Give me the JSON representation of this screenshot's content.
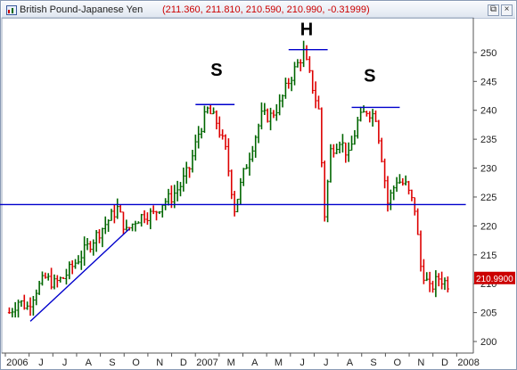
{
  "window": {
    "title": "British Pound-Japanese Yen",
    "values": "(211.360, 211.810, 210.590, 210.990, -0.31999)",
    "restore_label": "⧉",
    "close_label": "×"
  },
  "colors": {
    "up": "#006600",
    "down": "#dd0000",
    "line": "#0000cc",
    "price_box": "#cc0000"
  },
  "chart_data": {
    "type": "ohlc",
    "title": "British Pound-Japanese Yen",
    "ohlc_last": {
      "open": 211.36,
      "high": 211.81,
      "low": 210.59,
      "close": 210.99,
      "change": -0.31999
    },
    "last_price_label": "210.9900",
    "ylim": [
      198,
      256
    ],
    "y_ticks": [
      200,
      205,
      210,
      215,
      220,
      225,
      230,
      235,
      240,
      245,
      250
    ],
    "x_labels": [
      "2006",
      "J",
      "J",
      "A",
      "S",
      "O",
      "N",
      "D",
      "2007",
      "M",
      "A",
      "M",
      "J",
      "J",
      "A",
      "S",
      "O",
      "N",
      "D",
      "2008"
    ],
    "grid": false,
    "series": [
      {
        "x": 0,
        "y": 205
      },
      {
        "x": 3,
        "y": 207
      },
      {
        "x": 6,
        "y": 206
      },
      {
        "x": 9,
        "y": 209
      },
      {
        "x": 12,
        "y": 211
      },
      {
        "x": 15,
        "y": 210
      },
      {
        "x": 18,
        "y": 211
      },
      {
        "x": 21,
        "y": 213
      },
      {
        "x": 24,
        "y": 215
      },
      {
        "x": 27,
        "y": 217
      },
      {
        "x": 30,
        "y": 219
      },
      {
        "x": 33,
        "y": 221
      },
      {
        "x": 36,
        "y": 223
      },
      {
        "x": 39,
        "y": 219
      },
      {
        "x": 42,
        "y": 221
      },
      {
        "x": 45,
        "y": 222
      },
      {
        "x": 48,
        "y": 222
      },
      {
        "x": 51,
        "y": 224
      },
      {
        "x": 54,
        "y": 225
      },
      {
        "x": 57,
        "y": 227
      },
      {
        "x": 60,
        "y": 230
      },
      {
        "x": 63,
        "y": 236
      },
      {
        "x": 66,
        "y": 240
      },
      {
        "x": 69,
        "y": 238
      },
      {
        "x": 72,
        "y": 233
      },
      {
        "x": 75,
        "y": 223
      },
      {
        "x": 78,
        "y": 229
      },
      {
        "x": 81,
        "y": 234
      },
      {
        "x": 84,
        "y": 239
      },
      {
        "x": 87,
        "y": 239
      },
      {
        "x": 90,
        "y": 241
      },
      {
        "x": 93,
        "y": 245
      },
      {
        "x": 96,
        "y": 248
      },
      {
        "x": 98,
        "y": 250
      },
      {
        "x": 100,
        "y": 246
      },
      {
        "x": 103,
        "y": 240
      },
      {
        "x": 105,
        "y": 222
      },
      {
        "x": 107,
        "y": 233
      },
      {
        "x": 110,
        "y": 235
      },
      {
        "x": 113,
        "y": 232
      },
      {
        "x": 116,
        "y": 238
      },
      {
        "x": 119,
        "y": 240
      },
      {
        "x": 122,
        "y": 239
      },
      {
        "x": 124,
        "y": 232
      },
      {
        "x": 126,
        "y": 224
      },
      {
        "x": 129,
        "y": 228
      },
      {
        "x": 132,
        "y": 227
      },
      {
        "x": 135,
        "y": 223
      },
      {
        "x": 137,
        "y": 213
      },
      {
        "x": 140,
        "y": 209
      },
      {
        "x": 143,
        "y": 211
      },
      {
        "x": 146,
        "y": 210
      }
    ],
    "annotations": [
      {
        "text": "S",
        "x": 69,
        "y": 246
      },
      {
        "text": "H",
        "x": 99,
        "y": 253
      },
      {
        "text": "S",
        "x": 120,
        "y": 245
      }
    ],
    "lines": [
      {
        "kind": "neckline",
        "x1": -5,
        "y1": 223.7,
        "x2": 152,
        "y2": 223.7
      },
      {
        "kind": "trendline",
        "x1": 7,
        "y1": 203.5,
        "x2": 40,
        "y2": 219.5
      },
      {
        "kind": "peak-left-shoulder",
        "x1": 62,
        "y1": 241,
        "x2": 75,
        "y2": 241
      },
      {
        "kind": "peak-head",
        "x1": 93,
        "y1": 250.5,
        "x2": 106,
        "y2": 250.5
      },
      {
        "kind": "peak-right-shoulder",
        "x1": 114,
        "y1": 240.5,
        "x2": 130,
        "y2": 240.5
      }
    ]
  }
}
